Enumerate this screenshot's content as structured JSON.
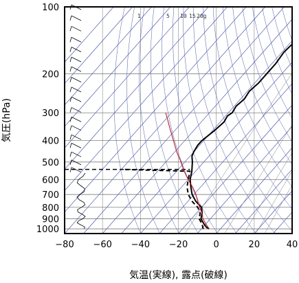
{
  "chart_data": {
    "type": "line",
    "title": "",
    "xlabel": "気温(実線), 露点(破線)",
    "ylabel": "気圧(hPa)",
    "xlim": [
      -80,
      40
    ],
    "ylim_hpa": [
      100,
      1050
    ],
    "y_scale": "log",
    "x_ticks": [
      "−80",
      "−60",
      "−40",
      "−20",
      "0",
      "20",
      "40"
    ],
    "x_tick_values": [
      -80,
      -60,
      -40,
      -20,
      0,
      20,
      40
    ],
    "y_ticks": [
      "100",
      "200",
      "300",
      "400",
      "500",
      "600",
      "700",
      "800",
      "900",
      "1000"
    ],
    "y_tick_values": [
      100,
      200,
      300,
      400,
      500,
      600,
      700,
      800,
      900,
      1000
    ],
    "skew_per_log_p": 45,
    "mixing_ratio_labels": [
      "1",
      "5",
      "10",
      "15",
      "20g"
    ],
    "mixing_ratio_values": [
      1,
      5,
      10,
      15,
      20
    ],
    "grid": true,
    "series": [
      {
        "style": "solid",
        "color": "#000000",
        "points": [
          [
            1000,
            -6
          ],
          [
            985,
            -8
          ],
          [
            950,
            -11
          ],
          [
            925,
            -13
          ],
          [
            900,
            -15
          ],
          [
            875,
            -16
          ],
          [
            850,
            -17
          ],
          [
            800,
            -20
          ],
          [
            775,
            -23
          ],
          [
            750,
            -26
          ],
          [
            700,
            -31
          ],
          [
            650,
            -35
          ],
          [
            600,
            -39
          ],
          [
            550,
            -42
          ],
          [
            500,
            -46
          ],
          [
            470,
            -49
          ],
          [
            450,
            -50
          ],
          [
            420,
            -51
          ],
          [
            400,
            -51
          ],
          [
            380,
            -50
          ],
          [
            360,
            -49
          ],
          [
            330,
            -48
          ],
          [
            310,
            -49
          ],
          [
            300,
            -48
          ],
          [
            280,
            -49
          ],
          [
            260,
            -48
          ],
          [
            240,
            -49
          ],
          [
            220,
            -48
          ],
          [
            200,
            -48
          ],
          [
            180,
            -48
          ],
          [
            160,
            -49
          ],
          [
            140,
            -48
          ],
          [
            120,
            -49
          ],
          [
            110,
            -49
          ],
          [
            100,
            -49
          ]
        ]
      },
      {
        "style": "dashed",
        "color": "#000000",
        "points": [
          [
            1000,
            -9
          ],
          [
            985,
            -10
          ],
          [
            950,
            -12
          ],
          [
            925,
            -14
          ],
          [
            900,
            -16
          ],
          [
            875,
            -17
          ],
          [
            850,
            -18
          ],
          [
            800,
            -22
          ],
          [
            775,
            -25
          ],
          [
            750,
            -28
          ],
          [
            700,
            -33
          ],
          [
            650,
            -37
          ],
          [
            600,
            -40
          ],
          [
            550,
            -43
          ],
          [
            540,
            -79
          ]
        ]
      },
      {
        "style": "solid",
        "color": "#dd0000",
        "points": [
          [
            1000,
            -6
          ],
          [
            950,
            -10
          ],
          [
            900,
            -14
          ],
          [
            850,
            -17
          ],
          [
            800,
            -21
          ],
          [
            750,
            -25
          ],
          [
            700,
            -29
          ],
          [
            650,
            -34
          ],
          [
            600,
            -40
          ],
          [
            550,
            -46
          ],
          [
            500,
            -52
          ],
          [
            450,
            -59
          ],
          [
            400,
            -66
          ],
          [
            350,
            -74
          ],
          [
            300,
            -83
          ]
        ]
      }
    ],
    "reference_line_hpa": 540,
    "wind_barbs": [
      {
        "p": 100
      },
      {
        "p": 112
      },
      {
        "p": 125
      },
      {
        "p": 140
      },
      {
        "p": 155
      },
      {
        "p": 172
      },
      {
        "p": 190
      },
      {
        "p": 212
      },
      {
        "p": 235
      },
      {
        "p": 260
      },
      {
        "p": 290
      },
      {
        "p": 320
      },
      {
        "p": 350
      },
      {
        "p": 385
      },
      {
        "p": 420
      },
      {
        "p": 460
      },
      {
        "p": 500
      },
      {
        "p": 540
      }
    ]
  }
}
